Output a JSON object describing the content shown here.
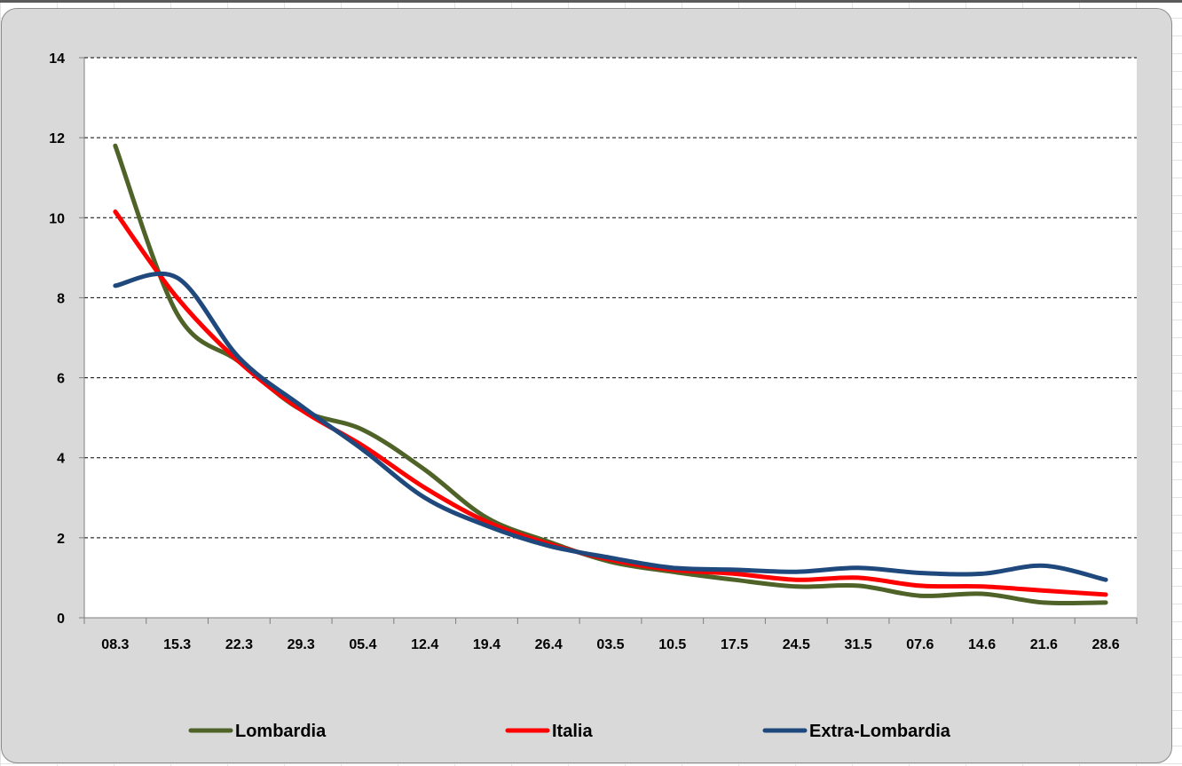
{
  "chart_data": {
    "type": "line",
    "title": "",
    "xlabel": "",
    "ylabel": "",
    "categories": [
      "08.3",
      "15.3",
      "22.3",
      "29.3",
      "05.4",
      "12.4",
      "19.4",
      "26.4",
      "03.5",
      "10.5",
      "17.5",
      "24.5",
      "31.5",
      "07.6",
      "14.6",
      "21.6",
      "28.6"
    ],
    "ylim": [
      0,
      14
    ],
    "yticks": [
      0,
      2,
      4,
      6,
      8,
      10,
      12,
      14
    ],
    "grid": "horizontal-dashed",
    "smooth": true,
    "legend_position": "bottom",
    "series": [
      {
        "name": "Lombardia",
        "color": "#4f6228",
        "values": [
          11.8,
          7.6,
          6.4,
          5.2,
          4.7,
          3.7,
          2.5,
          1.9,
          1.4,
          1.15,
          0.95,
          0.78,
          0.8,
          0.55,
          0.6,
          0.38,
          0.38
        ]
      },
      {
        "name": "Italia",
        "color": "#ff0000",
        "values": [
          10.15,
          8.0,
          6.4,
          5.2,
          4.3,
          3.25,
          2.4,
          1.85,
          1.45,
          1.2,
          1.1,
          0.95,
          1.0,
          0.8,
          0.78,
          0.68,
          0.58
        ]
      },
      {
        "name": "Extra-Lombardia",
        "color": "#1f497d",
        "values": [
          8.3,
          8.5,
          6.5,
          5.3,
          4.2,
          3.0,
          2.3,
          1.8,
          1.5,
          1.25,
          1.2,
          1.15,
          1.25,
          1.12,
          1.1,
          1.3,
          0.95
        ]
      }
    ]
  }
}
